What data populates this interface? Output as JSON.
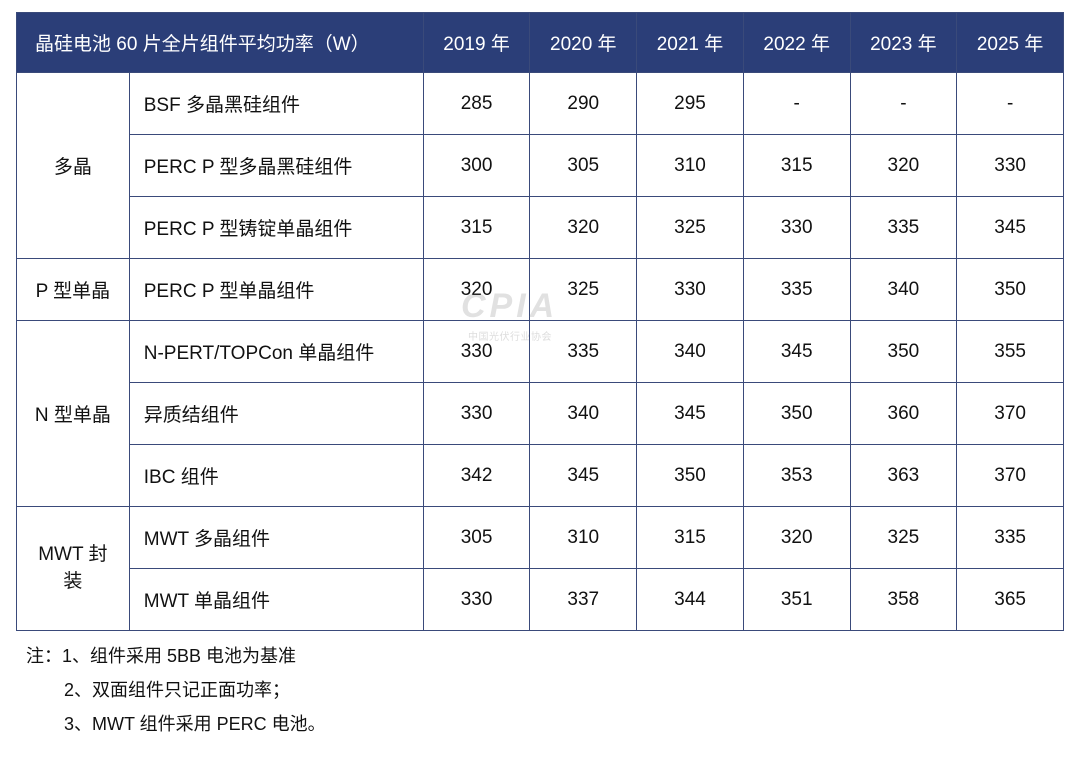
{
  "table": {
    "title": "晶硅电池 60 片全片组件平均功率（W）",
    "years": [
      "2019 年",
      "2020 年",
      "2021 年",
      "2022 年",
      "2023 年",
      "2025 年"
    ],
    "header_bg": "#2b3e78",
    "header_fg": "#ffffff",
    "border_color": "#3a4a7a",
    "cell_fontsize": 19,
    "categories": [
      {
        "label": "多晶",
        "rows": [
          {
            "name": "BSF 多晶黑硅组件",
            "values": [
              "285",
              "290",
              "295",
              "-",
              "-",
              "-"
            ]
          },
          {
            "name": "PERC P 型多晶黑硅组件",
            "values": [
              "300",
              "305",
              "310",
              "315",
              "320",
              "330"
            ]
          },
          {
            "name": "PERC P 型铸锭单晶组件",
            "values": [
              "315",
              "320",
              "325",
              "330",
              "335",
              "345"
            ]
          }
        ]
      },
      {
        "label": "P 型单晶",
        "rows": [
          {
            "name": "PERC P 型单晶组件",
            "values": [
              "320",
              "325",
              "330",
              "335",
              "340",
              "350"
            ]
          }
        ]
      },
      {
        "label": "N 型单晶",
        "rows": [
          {
            "name": "N-PERT/TOPCon 单晶组件",
            "values": [
              "330",
              "335",
              "340",
              "345",
              "350",
              "355"
            ]
          },
          {
            "name": "异质结组件",
            "values": [
              "330",
              "340",
              "345",
              "350",
              "360",
              "370"
            ]
          },
          {
            "name": "IBC 组件",
            "values": [
              "342",
              "345",
              "350",
              "353",
              "363",
              "370"
            ]
          }
        ]
      },
      {
        "label": "MWT 封装",
        "label_lines": [
          "MWT 封",
          "装"
        ],
        "rows": [
          {
            "name": "MWT 多晶组件",
            "values": [
              "305",
              "310",
              "315",
              "320",
              "325",
              "335"
            ]
          },
          {
            "name": "MWT 单晶组件",
            "values": [
              "330",
              "337",
              "344",
              "351",
              "358",
              "365"
            ]
          }
        ]
      }
    ]
  },
  "notes": {
    "prefix": "注：",
    "items": [
      "1、组件采用 5BB 电池为基准",
      "2、双面组件只记正面功率；",
      "3、MWT 组件采用 PERC 电池。"
    ]
  },
  "watermark": {
    "main": "CPIA",
    "sub": "中国光伏行业协会"
  }
}
